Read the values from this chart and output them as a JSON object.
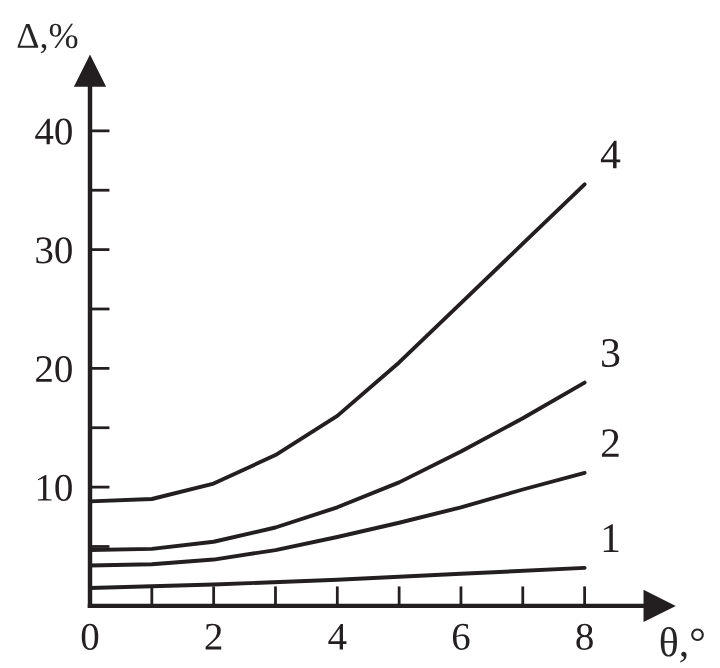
{
  "chart_data": {
    "type": "line",
    "xlabel": "θ,°",
    "ylabel": "Δ,%",
    "xlim": [
      0,
      9.2
    ],
    "ylim": [
      0,
      45
    ],
    "xticks": [
      0,
      {
        "value": 1,
        "label": null
      },
      2,
      {
        "value": 3,
        "label": null
      },
      4,
      {
        "value": 5,
        "label": null
      },
      6,
      {
        "value": 7,
        "label": null
      },
      8
    ],
    "yticks": [
      {
        "value": 5,
        "label": null
      },
      10,
      {
        "value": 15,
        "label": null
      },
      20,
      {
        "value": 25,
        "label": null
      },
      30,
      {
        "value": 35,
        "label": null
      },
      40
    ],
    "grid": false,
    "legend": false,
    "marker": "none",
    "line_style": "solid",
    "series": [
      {
        "name": "1",
        "color": "#231f20",
        "x": [
          0,
          2,
          4,
          6,
          8
        ],
        "values": [
          1.5,
          1.8,
          2.2,
          2.7,
          3.2
        ]
      },
      {
        "name": "2",
        "color": "#231f20",
        "x": [
          0,
          1,
          2,
          3,
          4,
          5,
          6,
          7,
          8
        ],
        "values": [
          3.4,
          3.5,
          3.9,
          4.7,
          5.8,
          7.0,
          8.3,
          9.8,
          11.2
        ]
      },
      {
        "name": "3",
        "color": "#231f20",
        "x": [
          0,
          1,
          2,
          3,
          4,
          5,
          6,
          7,
          8
        ],
        "values": [
          4.7,
          4.8,
          5.4,
          6.6,
          8.3,
          10.4,
          13.0,
          15.8,
          18.8
        ]
      },
      {
        "name": "4",
        "color": "#231f20",
        "x": [
          0,
          1,
          2,
          3,
          4,
          5,
          6,
          7,
          8
        ],
        "values": [
          8.8,
          9.0,
          10.3,
          12.7,
          16.0,
          20.5,
          25.5,
          30.5,
          35.5
        ]
      }
    ]
  }
}
